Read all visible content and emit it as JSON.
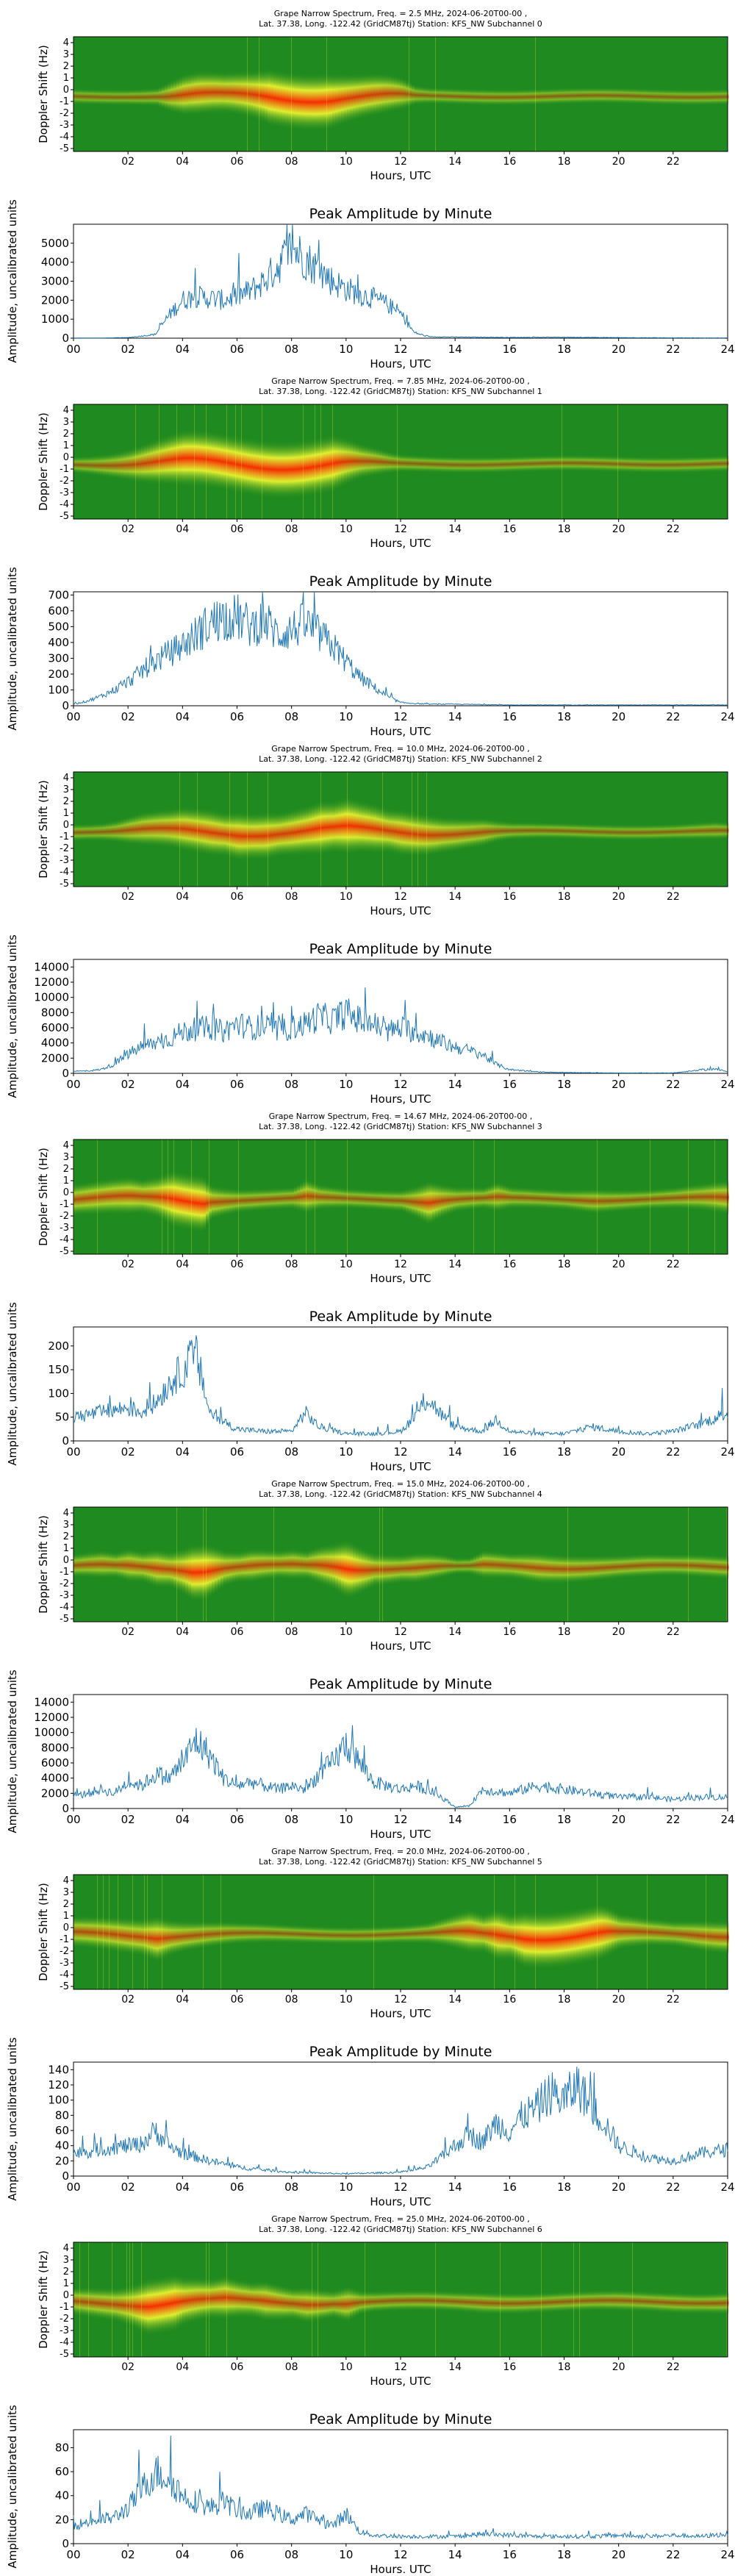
{
  "figure": {
    "xlabel": "Hours, UTC",
    "spec_ylabel": "Doppler Shift (Hz)",
    "amp_ylabel": "Amplitude, uncalibrated units",
    "amp_title": "Peak Amplitude by Minute",
    "spec_xticks": [
      "02",
      "04",
      "06",
      "08",
      "10",
      "12",
      "14",
      "16",
      "18",
      "20",
      "22"
    ],
    "amp_xticks": [
      "00",
      "02",
      "04",
      "06",
      "08",
      "10",
      "12",
      "14",
      "16",
      "18",
      "20",
      "22",
      "24"
    ],
    "spec_yticks": [
      "4",
      "3",
      "2",
      "1",
      "0",
      "-1",
      "-2",
      "-3",
      "-4",
      "-5"
    ],
    "colors": {
      "spectrogram_bg": "#1f8a1f",
      "line": "#1f77b4",
      "ridge_hot": "#ff2a00",
      "ridge_warm": "#ffff33"
    }
  },
  "channels": [
    {
      "title_line1": "Grape Narrow Spectrum, Freq. = 2.5 MHz, 2024-06-20T00-00 ,",
      "title_line2": "Lat.  37.38, Long. -122.42 (GridCM87tj) Station: KFS_NW Subchannel 0"
    },
    {
      "title_line1": "Grape Narrow Spectrum, Freq. = 7.85 MHz, 2024-06-20T00-00 ,",
      "title_line2": "Lat.  37.38, Long. -122.42 (GridCM87tj) Station: KFS_NW Subchannel 1"
    },
    {
      "title_line1": "Grape Narrow Spectrum, Freq. = 10.0 MHz, 2024-06-20T00-00 ,",
      "title_line2": "Lat.  37.38, Long. -122.42 (GridCM87tj) Station: KFS_NW Subchannel 2"
    },
    {
      "title_line1": "Grape Narrow Spectrum, Freq. = 14.67 MHz, 2024-06-20T00-00 ,",
      "title_line2": "Lat.  37.38, Long. -122.42 (GridCM87tj) Station: KFS_NW Subchannel 3"
    },
    {
      "title_line1": "Grape Narrow Spectrum, Freq. = 15.0 MHz, 2024-06-20T00-00 ,",
      "title_line2": "Lat.  37.38, Long. -122.42 (GridCM87tj) Station: KFS_NW Subchannel 4"
    },
    {
      "title_line1": "Grape Narrow Spectrum, Freq. = 20.0 MHz, 2024-06-20T00-00 ,",
      "title_line2": "Lat.  37.38, Long. -122.42 (GridCM87tj) Station: KFS_NW Subchannel 5"
    },
    {
      "title_line1": "Grape Narrow Spectrum, Freq. = 25.0 MHz, 2024-06-20T00-00 ,",
      "title_line2": "Lat.  37.38, Long. -122.42 (GridCM87tj) Station: KFS_NW Subchannel 6"
    }
  ],
  "chart_data": [
    {
      "type": "line",
      "subchannel": 0,
      "freq_mhz": 2.5,
      "title": "Peak Amplitude by Minute",
      "xlabel": "Hours, UTC",
      "ylabel": "Amplitude, uncalibrated units",
      "xlim": [
        0,
        24
      ],
      "ylim": [
        0,
        6000
      ],
      "yticks": [
        0,
        1000,
        2000,
        3000,
        4000,
        5000
      ],
      "x": [
        0,
        1,
        2,
        3,
        3.5,
        4,
        4.5,
        5,
        5.5,
        6,
        6.5,
        7,
        7.5,
        8,
        8.5,
        9,
        9.5,
        10,
        10.5,
        11,
        11.5,
        12,
        12.5,
        13,
        14,
        16,
        18,
        20,
        22,
        24
      ],
      "y": [
        10,
        10,
        30,
        200,
        1200,
        2000,
        2200,
        2100,
        2000,
        2200,
        2500,
        3000,
        3800,
        4800,
        4200,
        3600,
        3000,
        2600,
        2300,
        2100,
        1800,
        1300,
        300,
        80,
        60,
        40,
        50,
        30,
        20,
        15
      ]
    },
    {
      "type": "line",
      "subchannel": 1,
      "freq_mhz": 7.85,
      "title": "Peak Amplitude by Minute",
      "xlabel": "Hours, UTC",
      "ylabel": "Amplitude, uncalibrated units",
      "xlim": [
        0,
        24
      ],
      "ylim": [
        0,
        720
      ],
      "yticks": [
        0,
        100,
        200,
        300,
        400,
        500,
        600,
        700
      ],
      "x": [
        0,
        0.5,
        1,
        1.5,
        2,
        2.5,
        3,
        3.5,
        4,
        4.5,
        5,
        5.5,
        6,
        6.5,
        7,
        7.5,
        8,
        8.5,
        9,
        9.5,
        10,
        10.5,
        11,
        11.5,
        12,
        13,
        14,
        16,
        18,
        20,
        22,
        24
      ],
      "y": [
        10,
        30,
        60,
        100,
        150,
        220,
        280,
        330,
        380,
        450,
        520,
        560,
        560,
        500,
        540,
        450,
        480,
        520,
        450,
        380,
        280,
        180,
        120,
        60,
        20,
        10,
        10,
        5,
        5,
        5,
        5,
        5
      ]
    },
    {
      "type": "line",
      "subchannel": 2,
      "freq_mhz": 10.0,
      "title": "Peak Amplitude by Minute",
      "xlabel": "Hours, UTC",
      "ylabel": "Amplitude, uncalibrated units",
      "xlim": [
        0,
        24
      ],
      "ylim": [
        0,
        15000
      ],
      "yticks": [
        0,
        2000,
        4000,
        6000,
        8000,
        10000,
        12000,
        14000
      ],
      "x": [
        0,
        0.5,
        1,
        1.5,
        2,
        2.5,
        3,
        3.5,
        4,
        4.5,
        5,
        5.5,
        6,
        6.5,
        7,
        7.5,
        8,
        8.5,
        9,
        9.5,
        10,
        10.5,
        11,
        11.5,
        12,
        12.5,
        13,
        13.5,
        14,
        14.5,
        15,
        15.5,
        16,
        17,
        18,
        20,
        22,
        23.5,
        24
      ],
      "y": [
        300,
        300,
        500,
        1200,
        2500,
        3500,
        4000,
        4500,
        5500,
        5800,
        6000,
        5500,
        6500,
        6000,
        6200,
        5500,
        6000,
        6500,
        7500,
        7000,
        8000,
        7000,
        6500,
        5500,
        6000,
        5500,
        5000,
        4000,
        3500,
        3000,
        2500,
        1200,
        500,
        200,
        100,
        50,
        50,
        600,
        200
      ]
    },
    {
      "type": "line",
      "subchannel": 3,
      "freq_mhz": 14.67,
      "title": "Peak Amplitude by Minute",
      "xlabel": "Hours, UTC",
      "ylabel": "Amplitude, uncalibrated units",
      "xlim": [
        0,
        24
      ],
      "ylim": [
        0,
        240
      ],
      "yticks": [
        0,
        50,
        100,
        150,
        200
      ],
      "x": [
        0,
        0.5,
        1,
        1.5,
        2,
        2.5,
        3,
        3.5,
        4,
        4.5,
        5,
        5.5,
        6,
        7,
        8,
        8.5,
        9,
        10,
        11,
        12,
        12.5,
        13,
        13.5,
        14,
        15,
        15.5,
        16,
        17,
        18,
        19,
        20,
        21,
        22,
        23,
        24
      ],
      "y": [
        50,
        55,
        60,
        65,
        70,
        60,
        80,
        120,
        150,
        180,
        60,
        40,
        25,
        20,
        20,
        60,
        30,
        15,
        15,
        20,
        50,
        90,
        55,
        30,
        20,
        45,
        20,
        15,
        15,
        30,
        20,
        15,
        20,
        35,
        60
      ]
    },
    {
      "type": "line",
      "subchannel": 4,
      "freq_mhz": 15.0,
      "title": "Peak Amplitude by Minute",
      "xlabel": "Hours, UTC",
      "ylabel": "Amplitude, uncalibrated units",
      "xlim": [
        0,
        24
      ],
      "ylim": [
        0,
        15000
      ],
      "yticks": [
        0,
        2000,
        4000,
        6000,
        8000,
        10000,
        12000,
        14000
      ],
      "x": [
        0,
        0.5,
        1,
        1.5,
        2,
        2.5,
        3,
        3.5,
        4,
        4.5,
        5,
        5.5,
        6,
        6.5,
        7,
        7.5,
        8,
        8.5,
        9,
        9.5,
        10,
        10.5,
        11,
        11.5,
        12,
        12.5,
        13,
        13.5,
        14,
        14.5,
        15,
        16,
        17,
        18,
        19,
        20,
        21,
        22,
        23,
        24
      ],
      "y": [
        1500,
        2000,
        2500,
        2000,
        3500,
        3000,
        4500,
        4000,
        6000,
        9000,
        7000,
        4000,
        3000,
        3500,
        3000,
        2500,
        3000,
        2500,
        4500,
        6000,
        8500,
        6000,
        3500,
        3000,
        2500,
        3000,
        2500,
        1500,
        200,
        300,
        2500,
        2000,
        3000,
        2500,
        2000,
        1500,
        1500,
        1200,
        1500,
        1500
      ]
    },
    {
      "type": "line",
      "subchannel": 5,
      "freq_mhz": 20.0,
      "title": "Peak Amplitude by Minute",
      "xlabel": "Hours, UTC",
      "ylabel": "Amplitude, uncalibrated units",
      "xlim": [
        0,
        24
      ],
      "ylim": [
        0,
        150
      ],
      "yticks": [
        0,
        20,
        40,
        60,
        80,
        100,
        120,
        140
      ],
      "x": [
        0,
        0.5,
        1,
        1.5,
        2,
        2.5,
        3,
        3.5,
        4,
        4.5,
        5,
        6,
        7,
        8,
        9,
        10,
        11,
        12,
        12.5,
        13,
        13.5,
        14,
        14.5,
        15,
        15.5,
        16,
        16.5,
        17,
        17.5,
        18,
        18.5,
        19,
        19.5,
        20,
        21,
        22,
        23,
        24
      ],
      "y": [
        30,
        32,
        35,
        38,
        40,
        42,
        60,
        40,
        30,
        25,
        20,
        12,
        8,
        5,
        4,
        3,
        4,
        5,
        8,
        12,
        25,
        40,
        55,
        45,
        70,
        60,
        80,
        90,
        110,
        100,
        120,
        90,
        70,
        40,
        25,
        20,
        30,
        35
      ]
    },
    {
      "type": "line",
      "subchannel": 6,
      "freq_mhz": 25.0,
      "title": "Peak Amplitude by Minute",
      "xlabel": "Hours, UTC",
      "ylabel": "Amplitude, uncalibrated units",
      "xlim": [
        0,
        24
      ],
      "ylim": [
        0,
        95
      ],
      "yticks": [
        0,
        20,
        40,
        60,
        80
      ],
      "x": [
        0,
        0.5,
        1,
        1.5,
        2,
        2.5,
        3,
        3.5,
        4,
        4.5,
        5,
        5.5,
        6,
        6.5,
        7,
        7.5,
        8,
        8.5,
        9,
        9.5,
        10,
        10.5,
        11,
        12,
        13,
        14,
        15,
        16,
        17,
        18,
        19,
        20,
        21,
        22,
        23,
        24
      ],
      "y": [
        15,
        18,
        20,
        22,
        30,
        45,
        60,
        55,
        40,
        35,
        30,
        35,
        28,
        25,
        30,
        25,
        20,
        25,
        20,
        15,
        25,
        10,
        7,
        6,
        6,
        6,
        8,
        7,
        6,
        6,
        6,
        7,
        6,
        7,
        6,
        8
      ]
    }
  ]
}
